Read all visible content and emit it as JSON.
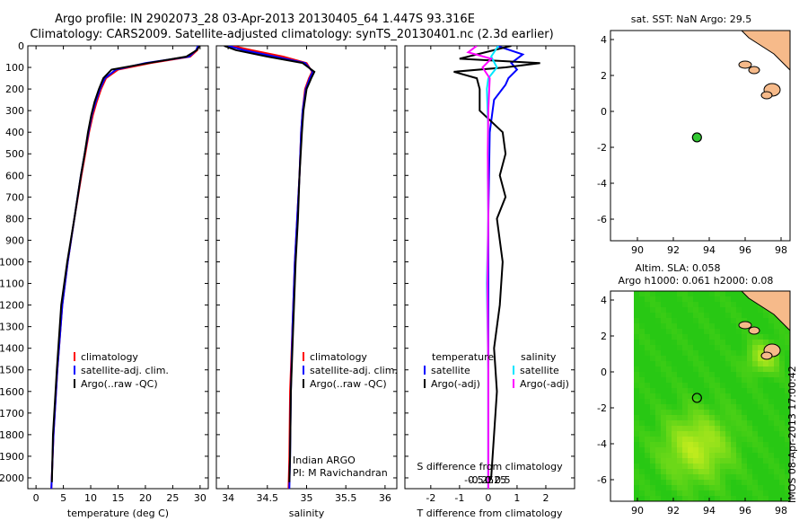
{
  "title_line1": "Argo profile: IN 2902073_28 03-Apr-2013 20130405_64 1.447S 93.316E",
  "title_line2": "Climatology: CARS2009. Satellite-adjusted climatology: synTS_20130401.nc (2.3d earlier)",
  "side_label": "IMOS 08-Apr-2013 17:00:42",
  "colors": {
    "clim": "#ff0000",
    "sat": "#0000ff",
    "argo": "#000000",
    "sal_sat": "#00e5ff",
    "sal_argo": "#ff00ff",
    "land": "#f6ba8a",
    "marker": "#32c832"
  },
  "depth_axis": {
    "ylim": [
      0,
      2050
    ],
    "ticks": [
      0,
      100,
      200,
      300,
      400,
      500,
      600,
      700,
      800,
      900,
      1000,
      1100,
      1200,
      1300,
      1400,
      1500,
      1600,
      1700,
      1800,
      1900,
      2000
    ]
  },
  "chart_data": [
    {
      "type": "line",
      "title": "",
      "xlabel": "temperature (deg C)",
      "ylabel": "",
      "xlim": [
        -1.5,
        31.5
      ],
      "xticks": [
        0,
        5,
        10,
        15,
        20,
        25,
        30
      ],
      "legend": [
        "climatology",
        "satellite-adj. clim.",
        "Argo(..raw -QC)"
      ],
      "series": [
        {
          "name": "climatology",
          "color_key": "clim",
          "x": [
            29.8,
            29.5,
            28.2,
            21.0,
            15.0,
            12.8,
            11.9,
            11.1,
            10.4,
            9.7,
            9.0,
            8.3,
            7.0,
            5.8,
            4.8,
            3.9,
            3.2,
            2.8
          ],
          "y": [
            0,
            20,
            50,
            80,
            110,
            150,
            200,
            260,
            320,
            400,
            500,
            600,
            800,
            1000,
            1200,
            1500,
            1800,
            2050
          ]
        },
        {
          "name": "satellite-adj. clim.",
          "color_key": "sat",
          "x": [
            29.6,
            29.3,
            28.0,
            20.0,
            14.6,
            12.6,
            11.7,
            10.9,
            10.2,
            9.6,
            8.9,
            8.2,
            7.0,
            5.8,
            4.8,
            3.9,
            3.2,
            2.8
          ],
          "y": [
            0,
            20,
            50,
            80,
            110,
            150,
            200,
            260,
            320,
            400,
            500,
            600,
            800,
            1000,
            1200,
            1500,
            1800,
            2050
          ]
        },
        {
          "name": "Argo(..raw -QC)",
          "color_key": "argo",
          "x": [
            29.9,
            29.4,
            27.5,
            20.5,
            13.8,
            12.3,
            11.5,
            10.7,
            10.1,
            9.5,
            8.9,
            8.2,
            7.0,
            5.7,
            4.6,
            3.8,
            3.1,
            2.9
          ],
          "y": [
            0,
            20,
            50,
            80,
            110,
            150,
            200,
            260,
            320,
            400,
            500,
            600,
            800,
            1000,
            1200,
            1500,
            1800,
            2020
          ]
        }
      ]
    },
    {
      "type": "line",
      "title": "",
      "xlabel": "salinity",
      "ylabel": "",
      "xlim": [
        33.85,
        36.15
      ],
      "xticks": [
        34,
        34.5,
        35,
        35.5,
        36
      ],
      "legend": [
        "climatology",
        "satellite-adj. clim.",
        "Argo(..raw -QC)"
      ],
      "annotations": [
        "Indian ARGO",
        "PI: M Ravichandran"
      ],
      "series": [
        {
          "name": "climatology",
          "color_key": "clim",
          "x": [
            34.05,
            34.3,
            34.7,
            35.0,
            35.07,
            35.03,
            34.98,
            34.95,
            34.93,
            34.91,
            34.88,
            34.85,
            34.82,
            34.79,
            34.78,
            34.77
          ],
          "y": [
            0,
            20,
            50,
            80,
            120,
            150,
            200,
            300,
            400,
            600,
            800,
            1000,
            1300,
            1600,
            1900,
            2050
          ]
        },
        {
          "name": "satellite-adj. clim.",
          "color_key": "sat",
          "x": [
            34.0,
            34.2,
            34.6,
            34.98,
            35.08,
            35.04,
            34.99,
            34.95,
            34.93,
            34.91,
            34.88,
            34.85,
            34.82,
            34.8,
            34.79,
            34.78
          ],
          "y": [
            0,
            20,
            50,
            80,
            120,
            150,
            200,
            300,
            400,
            600,
            800,
            1000,
            1300,
            1600,
            1900,
            2050
          ]
        },
        {
          "name": "Argo(..raw -QC)",
          "color_key": "argo",
          "x": [
            33.95,
            34.1,
            34.5,
            34.95,
            35.1,
            35.06,
            35.0,
            34.96,
            34.94,
            34.91,
            34.89,
            34.86,
            34.83,
            34.8,
            34.79,
            34.78
          ],
          "y": [
            0,
            20,
            50,
            80,
            120,
            150,
            200,
            300,
            400,
            600,
            800,
            1000,
            1300,
            1600,
            1900,
            2020
          ]
        }
      ]
    },
    {
      "type": "line",
      "title": "",
      "xlabel": "T difference from climatology",
      "x2label": "S difference from climatology",
      "ylabel": "",
      "xlim": [
        -2.9,
        3.0
      ],
      "xticks": [
        -2,
        -1,
        0,
        1,
        2
      ],
      "x2ticks": [
        -0.5,
        -0.25,
        0,
        0.25,
        0.5
      ],
      "legend": [
        "temperature",
        "satellite",
        "Argo(-adj)",
        "salinity",
        "satellite",
        "Argo(-adj)"
      ],
      "series": [
        {
          "name": "T satellite",
          "color_key": "sat",
          "x": [
            0.3,
            1.2,
            0.8,
            1.0,
            0.7,
            0.6,
            0.2,
            0.05,
            0.0,
            0.0,
            0.0
          ],
          "y": [
            0,
            40,
            80,
            110,
            150,
            180,
            250,
            400,
            800,
            1500,
            2050
          ]
        },
        {
          "name": "T Argo(-adj)",
          "color_key": "argo",
          "x": [
            0.8,
            -1.0,
            1.8,
            0.6,
            -1.2,
            -0.4,
            -0.3,
            -0.3,
            0.5,
            0.6,
            0.4,
            0.6,
            0.3,
            0.5,
            0.4,
            0.2,
            0.3,
            0.2,
            0.1,
            0.0
          ],
          "y": [
            0,
            60,
            80,
            100,
            120,
            150,
            200,
            300,
            400,
            500,
            600,
            700,
            800,
            1000,
            1200,
            1400,
            1600,
            1800,
            2000,
            2020
          ]
        },
        {
          "name": "S satellite",
          "color_key": "sal_sat",
          "x": [
            0.35,
            0.1,
            0.3,
            0.0,
            -0.05,
            0.0,
            -0.02,
            0.0,
            -0.05,
            0.0,
            0.0
          ],
          "y": [
            0,
            50,
            100,
            150,
            200,
            400,
            600,
            800,
            1100,
            1500,
            2050
          ]
        },
        {
          "name": "S Argo(-adj)",
          "color_key": "sal_argo",
          "x": [
            -0.4,
            -0.7,
            0.1,
            -0.2,
            0.05,
            0.0,
            -0.02,
            0.0,
            -0.03,
            0.0,
            0.0
          ],
          "y": [
            0,
            30,
            60,
            100,
            150,
            300,
            500,
            800,
            1100,
            1500,
            2050
          ]
        }
      ]
    },
    {
      "type": "scatter",
      "title": "sat. SST: NaN Argo: 29.5",
      "xlim": [
        88.5,
        98.5
      ],
      "ylim": [
        -7.2,
        4.5
      ],
      "xticks": [
        90,
        92,
        94,
        96,
        98
      ],
      "yticks": [
        -6,
        -4,
        -2,
        0,
        2,
        4
      ],
      "points": [
        {
          "x": 93.316,
          "y": -1.447
        }
      ]
    },
    {
      "type": "heatmap",
      "title_line1": "Altim. SLA: 0.058",
      "title_line2": "Argo h1000: 0.061 h2000: 0.08",
      "xlim": [
        88.5,
        98.5
      ],
      "ylim": [
        -7.2,
        4.5
      ],
      "xticks": [
        90,
        92,
        94,
        96,
        98
      ],
      "yticks": [
        -6,
        -4,
        -2,
        0,
        2,
        4
      ],
      "data_xlim": [
        89.8,
        98.5
      ],
      "points": [
        {
          "x": 93.316,
          "y": -1.447
        }
      ],
      "field_centers": [
        {
          "x": 93.3,
          "y": -4.2,
          "r": 1.9,
          "v": 0.1
        },
        {
          "x": 97.0,
          "y": 0.8,
          "r": 0.9,
          "v": 0.09
        }
      ]
    }
  ]
}
